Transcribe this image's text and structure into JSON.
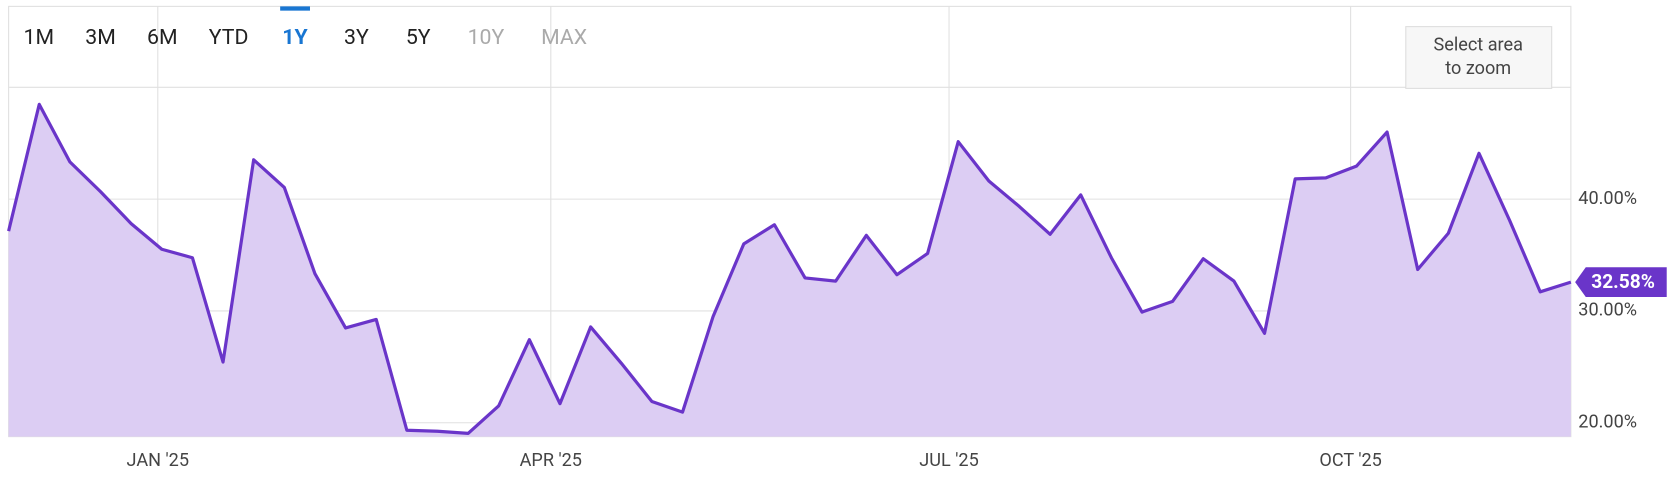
{
  "range_buttons": [
    "1M",
    "3M",
    "6M",
    "YTD",
    "1Y",
    "3Y",
    "5Y",
    "10Y",
    "MAX"
  ],
  "active_range": "1Y",
  "disabled_ranges": [
    "10Y",
    "MAX"
  ],
  "zoom_hint": [
    "Select area",
    "to zoom"
  ],
  "chart_data": {
    "type": "area",
    "x": [
      0,
      1,
      2,
      3,
      4,
      5,
      6,
      7,
      8,
      9,
      10,
      11,
      12,
      13,
      14,
      15,
      16,
      17,
      18,
      19,
      20,
      21,
      22,
      23,
      24,
      25,
      26,
      27,
      28,
      29,
      30,
      31,
      32,
      33,
      34,
      35,
      36,
      37,
      38,
      39,
      40,
      41,
      42,
      43,
      44,
      45,
      46,
      47,
      48,
      49,
      50,
      51
    ],
    "xlim": [
      0,
      51
    ],
    "xticks": [
      {
        "value": 4.87,
        "label": "JAN '25"
      },
      {
        "value": 17.7,
        "label": "APR '25"
      },
      {
        "value": 30.7,
        "label": "JUL '25"
      },
      {
        "value": 43.81,
        "label": "OCT '25"
      }
    ],
    "series": [
      {
        "color": "#6a35c9",
        "fill": "#dccdf3",
        "values": [
          37.14,
          48.48,
          43.33,
          40.67,
          37.81,
          35.52,
          34.76,
          25.43,
          43.52,
          41.05,
          33.33,
          28.48,
          29.24,
          19.33,
          19.24,
          19.05,
          21.52,
          27.43,
          21.71,
          28.57,
          25.33,
          21.9,
          20.95,
          29.52,
          36.0,
          37.71,
          32.95,
          32.67,
          36.76,
          33.24,
          35.14,
          45.14,
          41.62,
          39.33,
          36.86,
          40.38,
          34.76,
          29.9,
          30.86,
          34.67,
          32.67,
          28.0,
          41.81,
          41.9,
          42.95,
          46.0,
          33.71,
          36.95,
          44.1,
          38.1,
          31.71,
          32.58
        ],
        "last_value_label": "32.58%"
      }
    ],
    "ylim": [
      18.76,
      57.24
    ],
    "yticks": [
      {
        "value": 20,
        "label": "20.00%"
      },
      {
        "value": 30,
        "label": "30.00%"
      },
      {
        "value": 40,
        "label": "40.00%"
      }
    ],
    "grid": true
  }
}
